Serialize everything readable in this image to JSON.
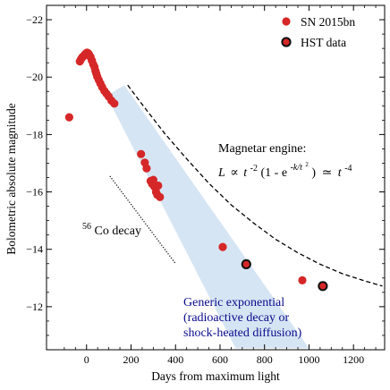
{
  "chart_data": {
    "type": "scatter",
    "xlabel": "Days from maximum light",
    "ylabel": "Bolometric absolute magnitude",
    "xlim": [
      -180,
      1340
    ],
    "ylim": [
      -10.5,
      -22.5
    ],
    "y_inverted": true,
    "x_ticks": [
      0,
      200,
      400,
      600,
      800,
      1000,
      1200
    ],
    "y_ticks": [
      -12,
      -14,
      -16,
      -18,
      -20,
      -22
    ],
    "x_tick_labels": [
      "0",
      "200",
      "400",
      "600",
      "800",
      "1000",
      "1200"
    ],
    "y_tick_labels": [
      "−12",
      "−14",
      "−16",
      "−18",
      "−20",
      "−22"
    ],
    "grid": false,
    "legend_position": "top-right",
    "colors": {
      "sn": "#d62728",
      "hst_edge": "#111111",
      "shade": "#cfe0f1",
      "blue_text": "#0a0a8c"
    },
    "series": [
      {
        "name": "SN 2015bn",
        "points": [
          [
            -78,
            -18.6
          ],
          [
            -30,
            -20.55
          ],
          [
            -25,
            -20.62
          ],
          [
            -20,
            -20.68
          ],
          [
            -15,
            -20.72
          ],
          [
            -10,
            -20.76
          ],
          [
            -6,
            -20.8
          ],
          [
            -2,
            -20.83
          ],
          [
            2,
            -20.85
          ],
          [
            6,
            -20.84
          ],
          [
            10,
            -20.8
          ],
          [
            14,
            -20.75
          ],
          [
            18,
            -20.7
          ],
          [
            24,
            -20.58
          ],
          [
            30,
            -20.45
          ],
          [
            36,
            -20.35
          ],
          [
            40,
            -20.22
          ],
          [
            44,
            -20.12
          ],
          [
            48,
            -20.02
          ],
          [
            55,
            -19.9
          ],
          [
            62,
            -19.78
          ],
          [
            70,
            -19.65
          ],
          [
            80,
            -19.52
          ],
          [
            90,
            -19.42
          ],
          [
            100,
            -19.32
          ],
          [
            112,
            -19.18
          ],
          [
            125,
            -19.08
          ],
          [
            245,
            -17.32
          ],
          [
            262,
            -17.02
          ],
          [
            270,
            -16.82
          ],
          [
            288,
            -16.38
          ],
          [
            295,
            -16.28
          ],
          [
            300,
            -16.42
          ],
          [
            305,
            -16.18
          ],
          [
            312,
            -16.0
          ],
          [
            318,
            -15.9
          ],
          [
            322,
            -16.22
          ],
          [
            330,
            -15.82
          ],
          [
            612,
            -14.08
          ],
          [
            970,
            -12.92
          ]
        ]
      },
      {
        "name": "HST data",
        "points": [
          [
            718,
            -13.48
          ],
          [
            1062,
            -12.72
          ]
        ]
      }
    ],
    "magnetar_curve": [
      [
        185,
        -19.72
      ],
      [
        250,
        -19.05
      ],
      [
        350,
        -18.05
      ],
      [
        450,
        -17.15
      ],
      [
        550,
        -16.3
      ],
      [
        650,
        -15.55
      ],
      [
        750,
        -14.92
      ],
      [
        850,
        -14.35
      ],
      [
        950,
        -13.88
      ],
      [
        1050,
        -13.48
      ],
      [
        1150,
        -13.15
      ],
      [
        1250,
        -12.9
      ],
      [
        1330,
        -12.72
      ]
    ],
    "co_decay_line": [
      [
        105,
        -16.55
      ],
      [
        400,
        -13.5
      ]
    ],
    "shaded_region": [
      [
        90,
        -19.35
      ],
      [
        170,
        -19.72
      ],
      [
        1000,
        -10.55
      ],
      [
        670,
        -10.55
      ]
    ],
    "annotations": {
      "magnetar_title": "Magnetar engine:",
      "magnetar_formula": {
        "L": "L",
        "prop": "∝",
        "t": "t",
        "exp1": "-2",
        "mid": "(1 - e",
        "exp2": "-k/t",
        "exp2b": "2",
        "close": ")",
        "approx": "≃",
        "t2": "t",
        "exp3": "-4"
      },
      "co_decay_sup": "56",
      "co_decay": "Co decay",
      "exp_lines": [
        "Generic exponential",
        "(radioactive decay or",
        "shock-heated diffusion)"
      ]
    }
  }
}
